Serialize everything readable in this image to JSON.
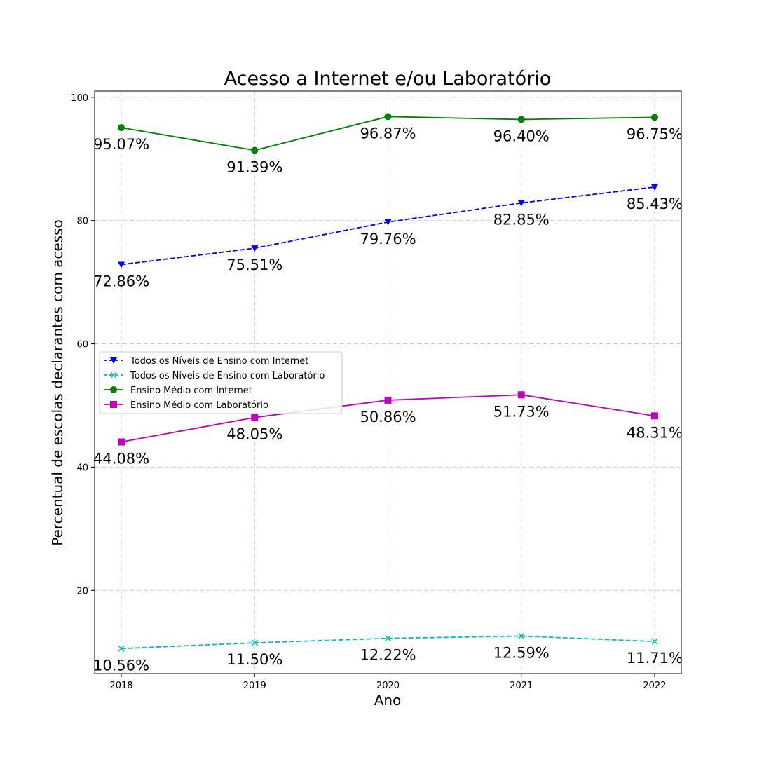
{
  "chart_data": {
    "type": "line",
    "title": "Acesso a Internet e/ou Laboratório",
    "xlabel": "Ano",
    "ylabel": "Percentual de escolas declarantes com acesso",
    "x": [
      2018,
      2019,
      2020,
      2021,
      2022
    ],
    "xlim": [
      2017.8,
      2022.2
    ],
    "ylim": [
      6.5,
      101
    ],
    "yticks": [
      20,
      40,
      60,
      80,
      100
    ],
    "grid": true,
    "legend_position": "center-left",
    "series": [
      {
        "name": "Todos os Níveis de Ensino com Internet",
        "values": [
          72.86,
          75.51,
          79.76,
          82.85,
          85.43
        ],
        "labels": [
          "72.86%",
          "75.51%",
          "79.76%",
          "82.85%",
          "85.43%"
        ],
        "color": "#0000ee",
        "marker": "triangle-down",
        "line_style": "dashed"
      },
      {
        "name": "Todos os Níveis de Ensino com Laboratório",
        "values": [
          10.56,
          11.5,
          12.22,
          12.59,
          11.71
        ],
        "labels": [
          "10.56%",
          "11.50%",
          "12.22%",
          "12.59%",
          "11.71%"
        ],
        "color": "#00bfbf",
        "marker": "x",
        "line_style": "dashed"
      },
      {
        "name": "Ensino Médio com Internet",
        "values": [
          95.07,
          91.39,
          96.87,
          96.4,
          96.75
        ],
        "labels": [
          "95.07%",
          "91.39%",
          "96.87%",
          "96.40%",
          "96.75%"
        ],
        "color": "#008000",
        "marker": "circle",
        "line_style": "solid"
      },
      {
        "name": "Ensino Médio com Laboratório",
        "values": [
          44.08,
          48.05,
          50.86,
          51.73,
          48.31
        ],
        "labels": [
          "44.08%",
          "48.05%",
          "50.86%",
          "51.73%",
          "48.31%"
        ],
        "color": "#bf00bf",
        "marker": "square",
        "line_style": "solid"
      }
    ]
  }
}
